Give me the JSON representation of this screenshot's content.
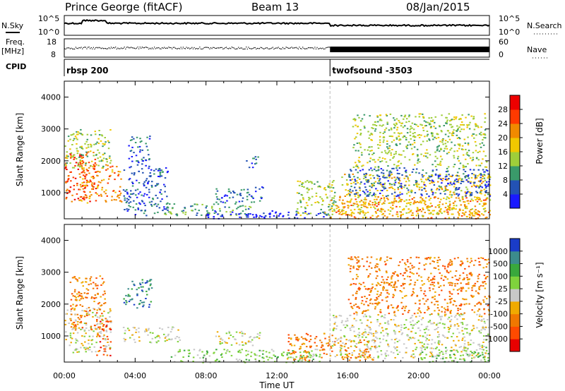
{
  "header": {
    "title": "Prince George (fitACF)",
    "beam": "Beam 13",
    "date": "08/Jan/2015"
  },
  "top_panels": {
    "nsky_label": "N.Sky",
    "nsky_ticks": [
      "10^5",
      "10^0"
    ],
    "nsearch_label": "N.Search",
    "nsearch_ticks": [
      "10^5",
      "10^0"
    ],
    "freq_label": "Freq.",
    "freq_unit": "[MHz]",
    "freq_ticks": [
      "18",
      "8"
    ],
    "nave_label": "Nave",
    "nave_ticks": [
      "60",
      "0"
    ],
    "cpid_label": "CPID",
    "cpid_segments": [
      {
        "name": "rbsp 200",
        "start_hour": 0
      },
      {
        "name": "twofsound -3503",
        "start_hour": 15
      }
    ]
  },
  "colors": {
    "power": [
      "#1a1aff",
      "#2352b4",
      "#3a9a6a",
      "#9fce3a",
      "#f0c800",
      "#f08a00",
      "#ff3a00",
      "#ee0000"
    ],
    "velocity": [
      "#1a3cc8",
      "#3c8c8c",
      "#39a83c",
      "#7fd23c",
      "#c8c8c8",
      "#f0aa00",
      "#f07800",
      "#ff4a00",
      "#e80000"
    ]
  },
  "chart_data": [
    {
      "type": "heatmap",
      "title": "Power",
      "ylabel": "Slant Range [km]",
      "xlabel": "",
      "xlim": [
        0,
        24
      ],
      "ylim": [
        180,
        4500
      ],
      "yticks": [
        "1000",
        "2000",
        "3000",
        "4000"
      ],
      "xticks": [
        "00:00",
        "04:00",
        "08:00",
        "12:00",
        "16:00",
        "20:00",
        "00:00"
      ],
      "colorbar": {
        "label": "Power [dB]",
        "ticks": [
          "4",
          "8",
          "12",
          "16",
          "20",
          "24",
          "28"
        ]
      },
      "echo_regions": [
        {
          "t0": 0.0,
          "t1": 1.8,
          "r0": 700,
          "r1": 2300,
          "level": 6
        },
        {
          "t0": 0.8,
          "t1": 3.2,
          "r0": 700,
          "r1": 1900,
          "level": 5
        },
        {
          "t0": 0.0,
          "t1": 2.6,
          "r0": 1800,
          "r1": 3000,
          "level": 3
        },
        {
          "t0": 3.3,
          "t1": 5.8,
          "r0": 300,
          "r1": 1800,
          "level": 1
        },
        {
          "t0": 3.6,
          "t1": 4.8,
          "r0": 1800,
          "r1": 2800,
          "level": 1
        },
        {
          "t0": 5.5,
          "t1": 10.5,
          "r0": 300,
          "r1": 700,
          "level": 2
        },
        {
          "t0": 8.5,
          "t1": 11.2,
          "r0": 700,
          "r1": 1200,
          "level": 1
        },
        {
          "t0": 10.2,
          "t1": 10.9,
          "r0": 1800,
          "r1": 2200,
          "level": 1
        },
        {
          "t0": 8.0,
          "t1": 14.8,
          "r0": 200,
          "r1": 450,
          "level": 0
        },
        {
          "t0": 13.0,
          "t1": 15.3,
          "r0": 250,
          "r1": 1400,
          "level": 3
        },
        {
          "t0": 15.0,
          "t1": 24.0,
          "r0": 200,
          "r1": 900,
          "level": 5
        },
        {
          "t0": 15.6,
          "t1": 24.0,
          "r0": 300,
          "r1": 1600,
          "level": 4
        },
        {
          "t0": 16.0,
          "t1": 24.0,
          "r0": 900,
          "r1": 1800,
          "level": 1
        },
        {
          "t0": 16.2,
          "t1": 23.8,
          "r0": 1800,
          "r1": 3500,
          "level": 3
        }
      ]
    },
    {
      "type": "heatmap",
      "title": "Velocity",
      "ylabel": "Slant Range [km]",
      "xlabel": "Time UT",
      "xlim": [
        0,
        24
      ],
      "ylim": [
        180,
        4500
      ],
      "yticks": [
        "1000",
        "2000",
        "3000",
        "4000"
      ],
      "xticks": [
        "00:00",
        "04:00",
        "08:00",
        "12:00",
        "16:00",
        "20:00",
        "00:00"
      ],
      "colorbar": {
        "label": "Velocity [m s^-1]",
        "ticks": [
          "1000",
          "500",
          "100",
          "25",
          "-25",
          "-100",
          "-500",
          "-1000"
        ]
      },
      "echo_regions": [
        {
          "t0": 0.0,
          "t1": 2.6,
          "r0": 500,
          "r1": 1900,
          "level": 4
        },
        {
          "t0": 0.3,
          "t1": 2.3,
          "r0": 1200,
          "r1": 2900,
          "level": 6
        },
        {
          "t0": 1.8,
          "t1": 2.6,
          "r0": 400,
          "r1": 1500,
          "level": 7
        },
        {
          "t0": 3.3,
          "t1": 4.9,
          "r0": 1900,
          "r1": 2800,
          "level": 1
        },
        {
          "t0": 3.3,
          "t1": 6.5,
          "r0": 800,
          "r1": 1300,
          "level": 4
        },
        {
          "t0": 6.0,
          "t1": 14.5,
          "r0": 180,
          "r1": 600,
          "level": 3
        },
        {
          "t0": 8.5,
          "t1": 11.0,
          "r0": 700,
          "r1": 1200,
          "level": 4
        },
        {
          "t0": 12.5,
          "t1": 15.3,
          "r0": 250,
          "r1": 1100,
          "level": 6
        },
        {
          "t0": 15.1,
          "t1": 24.0,
          "r0": 300,
          "r1": 1700,
          "level": 4
        },
        {
          "t0": 16.0,
          "t1": 24.0,
          "r0": 1700,
          "r1": 3500,
          "level": 6
        },
        {
          "t0": 15.5,
          "t1": 17.5,
          "r0": 250,
          "r1": 900,
          "level": 6
        },
        {
          "t0": 20.0,
          "t1": 24.0,
          "r0": 200,
          "r1": 700,
          "level": 3
        }
      ]
    }
  ]
}
